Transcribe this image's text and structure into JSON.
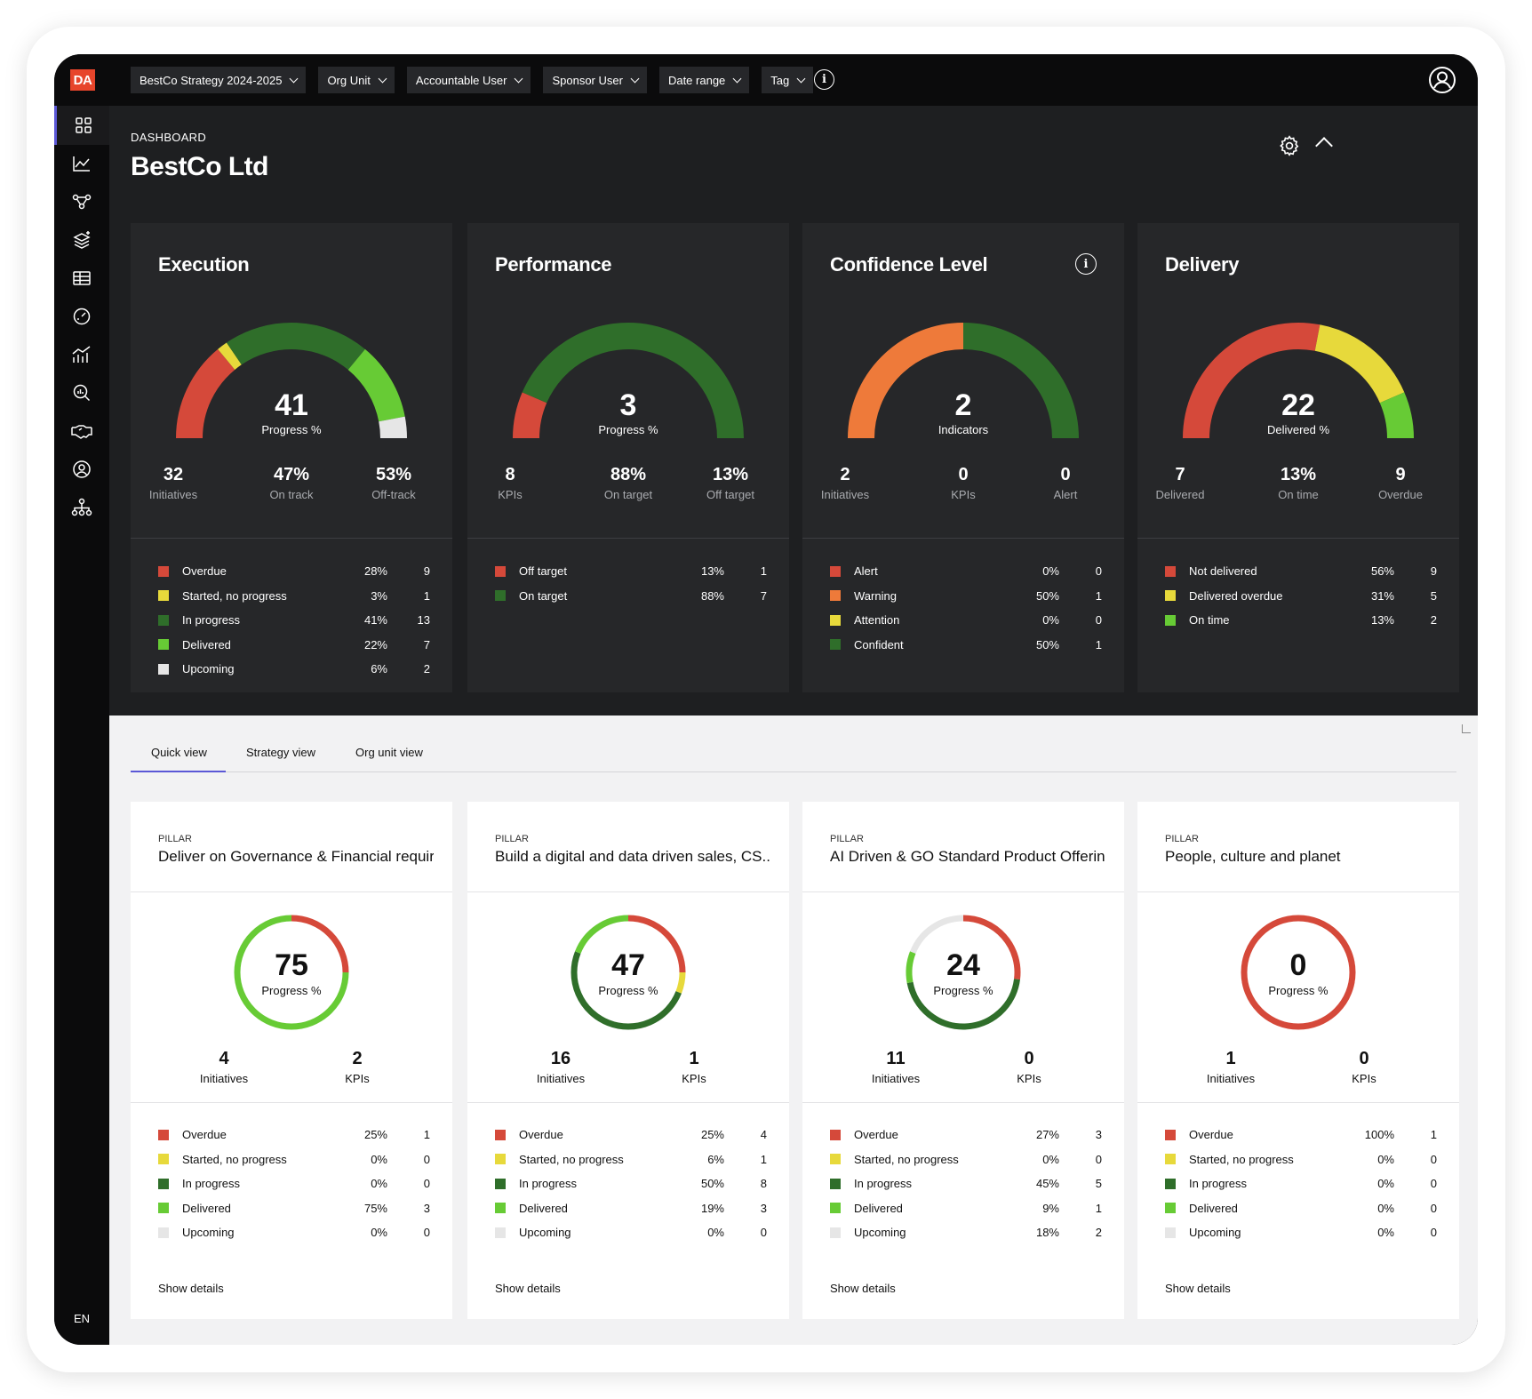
{
  "app": {
    "logo": "DA",
    "lang": "EN"
  },
  "filters": [
    {
      "label": "BestCo Strategy 2024-2025",
      "active": true
    },
    {
      "label": "Org Unit",
      "active": false
    },
    {
      "label": "Accountable User",
      "active": false
    },
    {
      "label": "Sponsor User",
      "active": false
    },
    {
      "label": "Date range",
      "active": false
    },
    {
      "label": "Tag",
      "active": false
    }
  ],
  "sidebar": {
    "items": [
      "dashboard-icon",
      "line-chart-icon",
      "strategy-map-icon",
      "layers-icon",
      "table-icon",
      "gauge-icon",
      "bar-chart-icon",
      "analysis-icon",
      "handshake-icon",
      "user-circle-icon",
      "org-chart-icon"
    ]
  },
  "dashboard": {
    "label": "DASHBOARD",
    "title": "BestCo Ltd"
  },
  "colors": {
    "red": "#d5493a",
    "yellow": "#e7d93b",
    "dark_green": "#2f6e2a",
    "green": "#67cb35",
    "white": "#e6e6e6",
    "orange": "#ee7a3a",
    "accent": "#5b58d6"
  },
  "cards": [
    {
      "title": "Execution",
      "info": false,
      "gauge": {
        "value": "41",
        "label": "Progress %",
        "segments": [
          {
            "c": "red",
            "f": 0.28
          },
          {
            "c": "yellow",
            "f": 0.03
          },
          {
            "c": "dark_green",
            "f": 0.41
          },
          {
            "c": "green",
            "f": 0.22
          },
          {
            "c": "white",
            "f": 0.06
          }
        ]
      },
      "stats": [
        {
          "v": "32",
          "l": "Initiatives"
        },
        {
          "v": "47%",
          "l": "On track"
        },
        {
          "v": "53%",
          "l": "Off-track"
        }
      ],
      "legend": [
        {
          "c": "red",
          "name": "Overdue",
          "pct": "28%",
          "count": "9"
        },
        {
          "c": "yellow",
          "name": "Started, no progress",
          "pct": "3%",
          "count": "1"
        },
        {
          "c": "dark_green",
          "name": "In progress",
          "pct": "41%",
          "count": "13"
        },
        {
          "c": "green",
          "name": "Delivered",
          "pct": "22%",
          "count": "7"
        },
        {
          "c": "white",
          "name": "Upcoming",
          "pct": "6%",
          "count": "2"
        }
      ]
    },
    {
      "title": "Performance",
      "info": false,
      "gauge": {
        "value": "3",
        "label": "Progress %",
        "segments": [
          {
            "c": "red",
            "f": 0.13
          },
          {
            "c": "dark_green",
            "f": 0.87
          }
        ]
      },
      "stats": [
        {
          "v": "8",
          "l": "KPIs"
        },
        {
          "v": "88%",
          "l": "On target"
        },
        {
          "v": "13%",
          "l": "Off target"
        }
      ],
      "legend": [
        {
          "c": "red",
          "name": "Off target",
          "pct": "13%",
          "count": "1"
        },
        {
          "c": "dark_green",
          "name": "On target",
          "pct": "88%",
          "count": "7"
        }
      ]
    },
    {
      "title": "Confidence Level",
      "info": true,
      "gauge": {
        "value": "2",
        "label": "Indicators",
        "segments": [
          {
            "c": "orange",
            "f": 0.5
          },
          {
            "c": "dark_green",
            "f": 0.5
          }
        ]
      },
      "stats": [
        {
          "v": "2",
          "l": "Initiatives"
        },
        {
          "v": "0",
          "l": "KPIs"
        },
        {
          "v": "0",
          "l": "Alert"
        }
      ],
      "legend": [
        {
          "c": "red",
          "name": "Alert",
          "pct": "0%",
          "count": "0"
        },
        {
          "c": "orange",
          "name": "Warning",
          "pct": "50%",
          "count": "1"
        },
        {
          "c": "yellow",
          "name": "Attention",
          "pct": "0%",
          "count": "0"
        },
        {
          "c": "dark_green",
          "name": "Confident",
          "pct": "50%",
          "count": "1"
        }
      ]
    },
    {
      "title": "Delivery",
      "info": false,
      "gauge": {
        "value": "22",
        "label": "Delivered %",
        "segments": [
          {
            "c": "red",
            "f": 0.56
          },
          {
            "c": "yellow",
            "f": 0.31
          },
          {
            "c": "green",
            "f": 0.13
          }
        ]
      },
      "stats": [
        {
          "v": "7",
          "l": "Delivered"
        },
        {
          "v": "13%",
          "l": "On time"
        },
        {
          "v": "9",
          "l": "Overdue"
        }
      ],
      "legend": [
        {
          "c": "red",
          "name": "Not delivered",
          "pct": "56%",
          "count": "9"
        },
        {
          "c": "yellow",
          "name": "Delivered overdue",
          "pct": "31%",
          "count": "5"
        },
        {
          "c": "green",
          "name": "On time",
          "pct": "13%",
          "count": "2"
        }
      ]
    }
  ],
  "tabs": [
    {
      "label": "Quick view",
      "active": true
    },
    {
      "label": "Strategy view",
      "active": false
    },
    {
      "label": "Org unit view",
      "active": false
    }
  ],
  "pillars": [
    {
      "kicker": "PILLAR",
      "title": "Deliver on Governance & Financial requir...",
      "ring": {
        "value": "75",
        "label": "Progress %",
        "segments": [
          {
            "c": "red",
            "f": 0.25
          },
          {
            "c": "green",
            "f": 0.75
          }
        ]
      },
      "stats": [
        {
          "v": "4",
          "l": "Initiatives"
        },
        {
          "v": "2",
          "l": "KPIs"
        }
      ],
      "legend": [
        {
          "c": "red",
          "name": "Overdue",
          "pct": "25%",
          "count": "1"
        },
        {
          "c": "yellow",
          "name": "Started, no progress",
          "pct": "0%",
          "count": "0"
        },
        {
          "c": "dark_green",
          "name": "In progress",
          "pct": "0%",
          "count": "0"
        },
        {
          "c": "green",
          "name": "Delivered",
          "pct": "75%",
          "count": "3"
        },
        {
          "c": "white",
          "name": "Upcoming",
          "pct": "0%",
          "count": "0"
        }
      ],
      "show": "Show details"
    },
    {
      "kicker": "PILLAR",
      "title": "Build a digital and data driven sales, CS...",
      "ring": {
        "value": "47",
        "label": "Progress %",
        "segments": [
          {
            "c": "red",
            "f": 0.25
          },
          {
            "c": "yellow",
            "f": 0.06
          },
          {
            "c": "dark_green",
            "f": 0.5
          },
          {
            "c": "green",
            "f": 0.19
          }
        ]
      },
      "stats": [
        {
          "v": "16",
          "l": "Initiatives"
        },
        {
          "v": "1",
          "l": "KPIs"
        }
      ],
      "legend": [
        {
          "c": "red",
          "name": "Overdue",
          "pct": "25%",
          "count": "4"
        },
        {
          "c": "yellow",
          "name": "Started, no progress",
          "pct": "6%",
          "count": "1"
        },
        {
          "c": "dark_green",
          "name": "In progress",
          "pct": "50%",
          "count": "8"
        },
        {
          "c": "green",
          "name": "Delivered",
          "pct": "19%",
          "count": "3"
        },
        {
          "c": "white",
          "name": "Upcoming",
          "pct": "0%",
          "count": "0"
        }
      ],
      "show": "Show details"
    },
    {
      "kicker": "PILLAR",
      "title": "AI Driven & GO Standard Product Offerin...",
      "ring": {
        "value": "24",
        "label": "Progress %",
        "segments": [
          {
            "c": "red",
            "f": 0.27
          },
          {
            "c": "dark_green",
            "f": 0.45
          },
          {
            "c": "green",
            "f": 0.09
          },
          {
            "c": "white",
            "f": 0.19
          }
        ]
      },
      "stats": [
        {
          "v": "11",
          "l": "Initiatives"
        },
        {
          "v": "0",
          "l": "KPIs"
        }
      ],
      "legend": [
        {
          "c": "red",
          "name": "Overdue",
          "pct": "27%",
          "count": "3"
        },
        {
          "c": "yellow",
          "name": "Started, no progress",
          "pct": "0%",
          "count": "0"
        },
        {
          "c": "dark_green",
          "name": "In progress",
          "pct": "45%",
          "count": "5"
        },
        {
          "c": "green",
          "name": "Delivered",
          "pct": "9%",
          "count": "1"
        },
        {
          "c": "white",
          "name": "Upcoming",
          "pct": "18%",
          "count": "2"
        }
      ],
      "show": "Show details"
    },
    {
      "kicker": "PILLAR",
      "title": "People, culture and planet",
      "ring": {
        "value": "0",
        "label": "Progress %",
        "segments": [
          {
            "c": "red",
            "f": 1.0
          }
        ]
      },
      "stats": [
        {
          "v": "1",
          "l": "Initiatives"
        },
        {
          "v": "0",
          "l": "KPIs"
        }
      ],
      "legend": [
        {
          "c": "red",
          "name": "Overdue",
          "pct": "100%",
          "count": "1"
        },
        {
          "c": "yellow",
          "name": "Started, no progress",
          "pct": "0%",
          "count": "0"
        },
        {
          "c": "dark_green",
          "name": "In progress",
          "pct": "0%",
          "count": "0"
        },
        {
          "c": "green",
          "name": "Delivered",
          "pct": "0%",
          "count": "0"
        },
        {
          "c": "white",
          "name": "Upcoming",
          "pct": "0%",
          "count": "0"
        }
      ],
      "show": "Show details"
    }
  ]
}
